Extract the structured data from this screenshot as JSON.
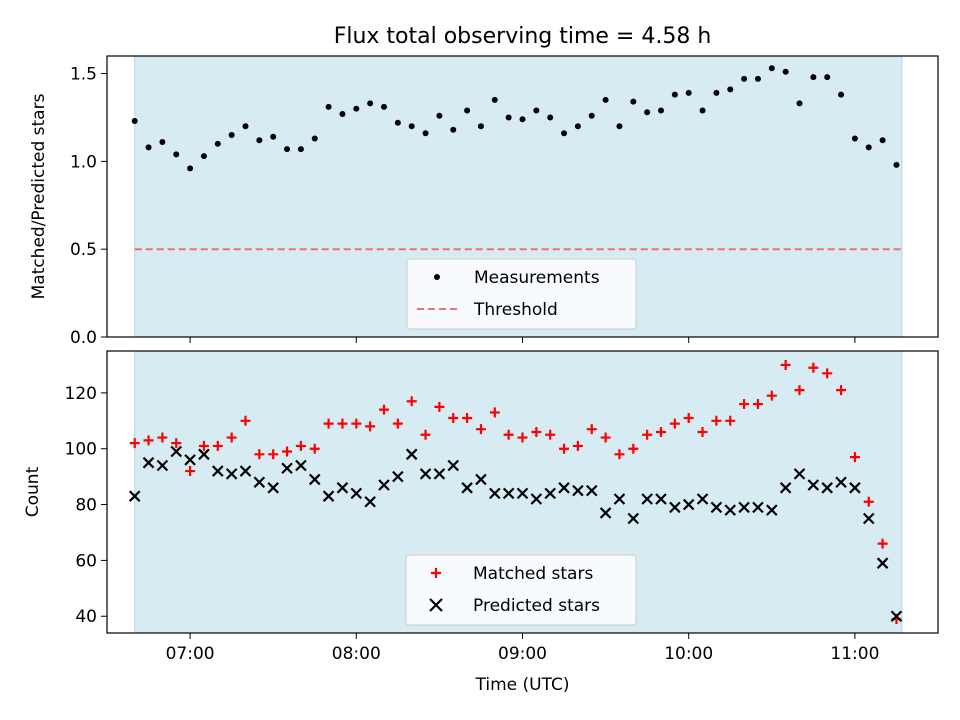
{
  "chart_data": [
    {
      "type": "scatter",
      "title": "Flux total observing time = 4.58 h",
      "xlabel": "",
      "ylabel": "Matched/Predicted stars",
      "xlim": [
        "06:30",
        "11:30"
      ],
      "ylim": [
        0,
        1.6
      ],
      "y_ticks": [
        "0.0",
        "0.5",
        "1.0",
        "1.5"
      ],
      "shaded_interval": [
        "06:40",
        "11:17"
      ],
      "shade_color": "#add8e6",
      "threshold": 0.5,
      "series": [
        {
          "name": "Measurements",
          "color": "#000000",
          "marker": "dot",
          "x": [
            "06:40",
            "06:45",
            "06:50",
            "06:55",
            "07:00",
            "07:05",
            "07:10",
            "07:15",
            "07:20",
            "07:25",
            "07:30",
            "07:35",
            "07:40",
            "07:45",
            "07:50",
            "07:55",
            "08:00",
            "08:05",
            "08:10",
            "08:15",
            "08:20",
            "08:25",
            "08:30",
            "08:35",
            "08:40",
            "08:45",
            "08:50",
            "08:55",
            "09:00",
            "09:05",
            "09:10",
            "09:15",
            "09:20",
            "09:25",
            "09:30",
            "09:35",
            "09:40",
            "09:45",
            "09:50",
            "09:55",
            "10:00",
            "10:05",
            "10:10",
            "10:15",
            "10:20",
            "10:25",
            "10:30",
            "10:35",
            "10:40",
            "10:45",
            "10:50",
            "10:55",
            "11:00",
            "11:05",
            "11:10",
            "11:15"
          ],
          "y": [
            1.23,
            1.08,
            1.11,
            1.04,
            0.96,
            1.03,
            1.1,
            1.15,
            1.2,
            1.12,
            1.14,
            1.07,
            1.07,
            1.13,
            1.31,
            1.27,
            1.3,
            1.33,
            1.31,
            1.22,
            1.2,
            1.16,
            1.26,
            1.18,
            1.29,
            1.2,
            1.35,
            1.25,
            1.24,
            1.29,
            1.25,
            1.16,
            1.2,
            1.26,
            1.35,
            1.2,
            1.34,
            1.28,
            1.29,
            1.38,
            1.39,
            1.29,
            1.39,
            1.41,
            1.47,
            1.47,
            1.53,
            1.51,
            1.33,
            1.48,
            1.48,
            1.38,
            1.13,
            1.08,
            1.12,
            0.98
          ]
        },
        {
          "name": "Threshold",
          "color": "#f07070",
          "style": "dashed",
          "y": 0.5
        }
      ]
    },
    {
      "type": "scatter",
      "title": "",
      "xlabel": "Time (UTC)",
      "ylabel": "Count",
      "xlim": [
        "06:30",
        "11:30"
      ],
      "ylim": [
        34,
        135
      ],
      "x_ticks": [
        "07:00",
        "08:00",
        "09:00",
        "10:00",
        "11:00"
      ],
      "y_ticks": [
        "40",
        "60",
        "80",
        "100",
        "120"
      ],
      "shaded_interval": [
        "06:40",
        "11:17"
      ],
      "shade_color": "#add8e6",
      "series": [
        {
          "name": "Matched stars",
          "color": "#ff0000",
          "marker": "plus",
          "x": [
            "06:40",
            "06:45",
            "06:50",
            "06:55",
            "07:00",
            "07:05",
            "07:10",
            "07:15",
            "07:20",
            "07:25",
            "07:30",
            "07:35",
            "07:40",
            "07:45",
            "07:50",
            "07:55",
            "08:00",
            "08:05",
            "08:10",
            "08:15",
            "08:20",
            "08:25",
            "08:30",
            "08:35",
            "08:40",
            "08:45",
            "08:50",
            "08:55",
            "09:00",
            "09:05",
            "09:10",
            "09:15",
            "09:20",
            "09:25",
            "09:30",
            "09:35",
            "09:40",
            "09:45",
            "09:50",
            "09:55",
            "10:00",
            "10:05",
            "10:10",
            "10:15",
            "10:20",
            "10:25",
            "10:30",
            "10:35",
            "10:40",
            "10:45",
            "10:50",
            "10:55",
            "11:00",
            "11:05",
            "11:10",
            "11:15"
          ],
          "y": [
            102,
            103,
            104,
            102,
            92,
            101,
            101,
            104,
            110,
            98,
            98,
            99,
            101,
            100,
            109,
            109,
            109,
            108,
            114,
            109,
            117,
            105,
            115,
            111,
            111,
            107,
            113,
            105,
            104,
            106,
            105,
            100,
            101,
            107,
            104,
            98,
            100,
            105,
            106,
            109,
            111,
            106,
            110,
            110,
            116,
            116,
            119,
            130,
            121,
            129,
            127,
            121,
            97,
            81,
            66,
            39
          ]
        },
        {
          "name": "Predicted stars",
          "color": "#000000",
          "marker": "x",
          "x": [
            "06:40",
            "06:45",
            "06:50",
            "06:55",
            "07:00",
            "07:05",
            "07:10",
            "07:15",
            "07:20",
            "07:25",
            "07:30",
            "07:35",
            "07:40",
            "07:45",
            "07:50",
            "07:55",
            "08:00",
            "08:05",
            "08:10",
            "08:15",
            "08:20",
            "08:25",
            "08:30",
            "08:35",
            "08:40",
            "08:45",
            "08:50",
            "08:55",
            "09:00",
            "09:05",
            "09:10",
            "09:15",
            "09:20",
            "09:25",
            "09:30",
            "09:35",
            "09:40",
            "09:45",
            "09:50",
            "09:55",
            "10:00",
            "10:05",
            "10:10",
            "10:15",
            "10:20",
            "10:25",
            "10:30",
            "10:35",
            "10:40",
            "10:45",
            "10:50",
            "10:55",
            "11:00",
            "11:05",
            "11:10",
            "11:15"
          ],
          "y": [
            83,
            95,
            94,
            99,
            96,
            98,
            92,
            91,
            92,
            88,
            86,
            93,
            94,
            89,
            83,
            86,
            84,
            81,
            87,
            90,
            98,
            91,
            91,
            94,
            86,
            89,
            84,
            84,
            84,
            82,
            84,
            86,
            85,
            85,
            77,
            82,
            75,
            82,
            82,
            79,
            80,
            82,
            79,
            78,
            79,
            79,
            78,
            86,
            91,
            87,
            86,
            88,
            86,
            75,
            59,
            40
          ]
        }
      ]
    }
  ]
}
